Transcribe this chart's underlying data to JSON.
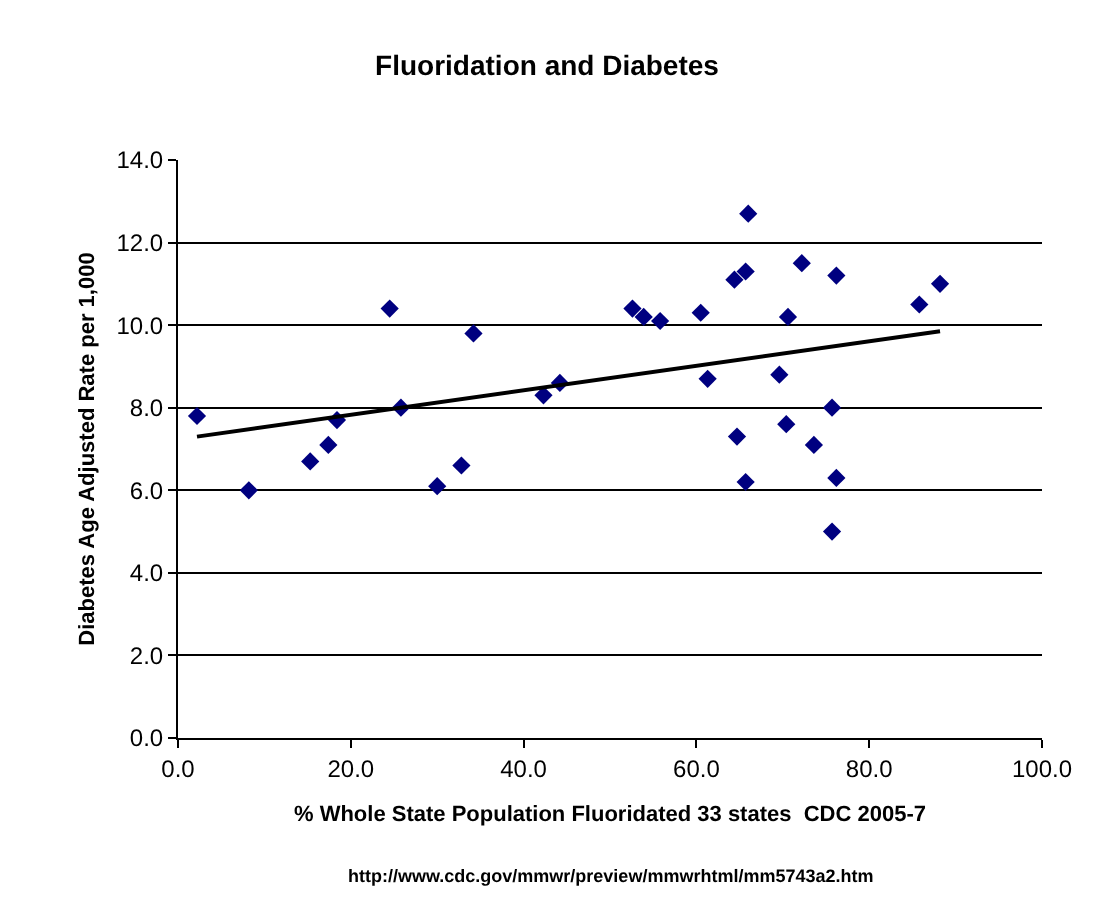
{
  "chart_data": {
    "type": "scatter",
    "title": "Fluoridation and Diabetes",
    "xlabel": "% Whole State Population Fluoridated 33 states  CDC 2005-7",
    "ylabel": "Diabetes Age Adjusted Rate per 1,000",
    "annotations": [
      "http://www.cdc.gov/mmwr/preview/mmwrhtml/mm5743a2.htm"
    ],
    "xlim": [
      0,
      100
    ],
    "xticks": [
      {
        "value": 0,
        "label": "0.0"
      },
      {
        "value": 20,
        "label": "20.0"
      },
      {
        "value": 40,
        "label": "40.0"
      },
      {
        "value": 60,
        "label": "60.0"
      },
      {
        "value": 80,
        "label": "80.0"
      },
      {
        "value": 100,
        "label": "100.0"
      }
    ],
    "ylim": [
      0,
      14
    ],
    "yticks": [
      {
        "value": 0,
        "label": "0.0"
      },
      {
        "value": 2,
        "label": "2.0"
      },
      {
        "value": 4,
        "label": "4.0"
      },
      {
        "value": 6,
        "label": "6.0"
      },
      {
        "value": 8,
        "label": "8.0"
      },
      {
        "value": 10,
        "label": "10.0"
      },
      {
        "value": 12,
        "label": "12.0"
      },
      {
        "value": 14,
        "label": "14.0"
      }
    ],
    "grid": "y",
    "series": [
      {
        "marker": "diamond",
        "color": "#000080",
        "x": [
          2.2,
          8.2,
          15.3,
          17.4,
          18.4,
          24.5,
          25.8,
          30,
          32.8,
          34.2,
          42.3,
          44.2,
          52.6,
          53.9,
          55.8,
          60.5,
          61.3,
          64.4,
          65.7,
          66.0,
          64.7,
          65.7,
          69.6,
          70.6,
          70.4,
          72.2,
          73.6,
          75.7,
          76.2,
          76.2,
          75.7,
          85.8,
          88.2
        ],
        "values": [
          7.8,
          6.0,
          6.7,
          7.1,
          7.7,
          10.4,
          8.0,
          6.1,
          6.6,
          9.8,
          8.3,
          8.6,
          10.4,
          10.2,
          10.1,
          10.3,
          8.7,
          11.1,
          11.3,
          12.7,
          7.3,
          6.2,
          8.8,
          10.2,
          7.6,
          11.5,
          7.1,
          8.0,
          11.2,
          6.3,
          5.0,
          10.5,
          11.0
        ]
      },
      {
        "type": "line",
        "marker": "none",
        "color": "#000000",
        "x": [
          2.2,
          88.2
        ],
        "values": [
          7.3,
          9.85
        ]
      }
    ]
  }
}
